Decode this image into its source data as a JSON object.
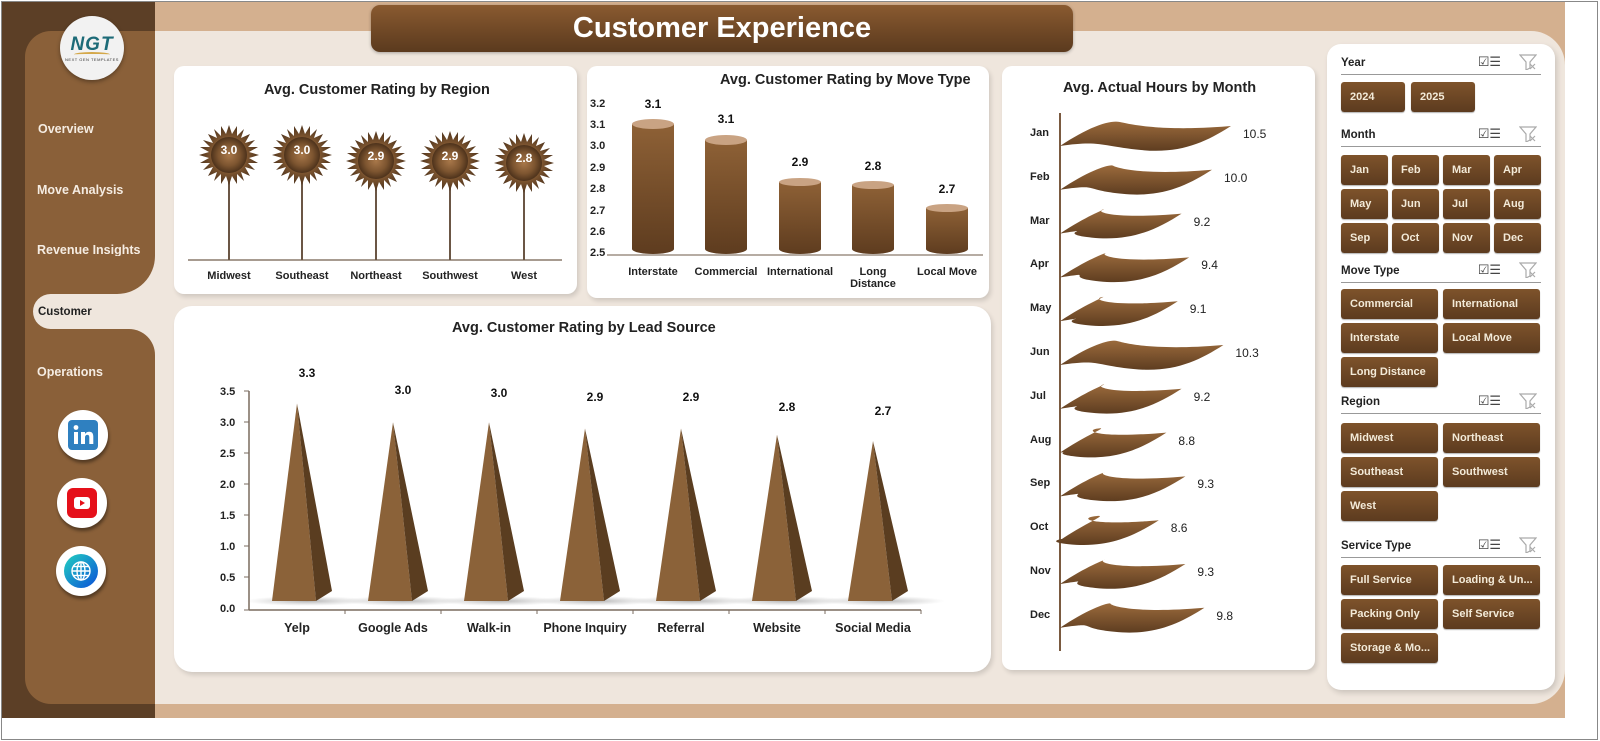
{
  "header": {
    "title": "Customer Experience"
  },
  "logo": {
    "text": "NGT",
    "subtitle": "NEXT GEN TEMPLATES"
  },
  "sidebar": {
    "items": [
      {
        "label": "Overview",
        "active": false
      },
      {
        "label": "Move Analysis",
        "active": false
      },
      {
        "label": "Revenue Insights",
        "active": false
      },
      {
        "label": "Customer",
        "active": true
      },
      {
        "label": "Operations",
        "active": false
      }
    ],
    "social": [
      {
        "name": "linkedin-icon",
        "color": "#2f80c0"
      },
      {
        "name": "youtube-icon",
        "color": "#e5101a"
      },
      {
        "name": "globe-icon",
        "color": "#0d7bd1"
      }
    ]
  },
  "colors": {
    "brand_dark": "#5c3f26",
    "brand": "#8a6039",
    "cream": "#efe6dd",
    "tan": "#d4b08f",
    "bar": "#8b6239"
  },
  "chart_data": [
    {
      "type": "bar",
      "title": "Avg. Customer Rating by Region",
      "categories": [
        "Midwest",
        "Southeast",
        "Northeast",
        "Southwest",
        "West"
      ],
      "values": [
        3.0,
        3.0,
        2.9,
        2.9,
        2.8
      ],
      "labels": [
        "3.0",
        "3.0",
        "2.9",
        "2.9",
        "2.8"
      ],
      "style": "lollipop-starburst"
    },
    {
      "type": "bar",
      "title": "Avg. Customer Rating by Move Type",
      "categories": [
        "Interstate",
        "Commercial",
        "International",
        "Long Distance",
        "Local Move"
      ],
      "values": [
        3.1,
        3.05,
        2.85,
        2.83,
        2.72
      ],
      "labels": [
        "3.1",
        "3.1",
        "2.9",
        "2.8",
        "2.7"
      ],
      "yticks": [
        "3.2",
        "3.1",
        "3.0",
        "2.9",
        "2.8",
        "2.7",
        "2.6",
        "2.5"
      ],
      "ylim": [
        2.5,
        3.2
      ],
      "style": "cylinder"
    },
    {
      "type": "bar",
      "title": "Avg. Customer Rating by Lead Source",
      "categories": [
        "Yelp",
        "Google Ads",
        "Walk-in",
        "Phone Inquiry",
        "Referral",
        "Website",
        "Social Media"
      ],
      "values": [
        3.3,
        3.0,
        3.0,
        2.9,
        2.9,
        2.8,
        2.7
      ],
      "labels": [
        "3.3",
        "3.0",
        "3.0",
        "2.9",
        "2.9",
        "2.8",
        "2.7"
      ],
      "yticks": [
        "3.5",
        "3.0",
        "2.5",
        "2.0",
        "1.5",
        "1.0",
        "0.5",
        "0.0"
      ],
      "ylim": [
        0,
        3.5
      ],
      "style": "pyramid"
    },
    {
      "type": "bar",
      "orientation": "horizontal",
      "title": "Avg. Actual Hours by Month",
      "categories": [
        "Jan",
        "Feb",
        "Mar",
        "Apr",
        "May",
        "Jun",
        "Jul",
        "Aug",
        "Sep",
        "Oct",
        "Nov",
        "Dec"
      ],
      "values": [
        10.5,
        10.0,
        9.2,
        9.4,
        9.1,
        10.3,
        9.2,
        8.8,
        9.3,
        8.6,
        9.3,
        9.8
      ],
      "labels": [
        "10.5",
        "10.0",
        "9.2",
        "9.4",
        "9.1",
        "10.3",
        "9.2",
        "8.8",
        "9.3",
        "8.6",
        "9.3",
        "9.8"
      ],
      "style": "wave-flag"
    }
  ],
  "slicers": {
    "year": {
      "title": "Year",
      "options": [
        "2024",
        "2025"
      ]
    },
    "month": {
      "title": "Month",
      "options": [
        "Jan",
        "Feb",
        "Mar",
        "Apr",
        "May",
        "Jun",
        "Jul",
        "Aug",
        "Sep",
        "Oct",
        "Nov",
        "Dec"
      ]
    },
    "move_type": {
      "title": "Move Type",
      "options": [
        "Commercial",
        "International",
        "Interstate",
        "Local Move",
        "Long Distance"
      ]
    },
    "region": {
      "title": "Region",
      "options": [
        "Midwest",
        "Northeast",
        "Southeast",
        "Southwest",
        "West"
      ]
    },
    "service_type": {
      "title": "Service Type",
      "options": [
        "Full Service",
        "Loading & Un...",
        "Packing Only",
        "Self Service",
        "Storage & Mo..."
      ]
    }
  }
}
